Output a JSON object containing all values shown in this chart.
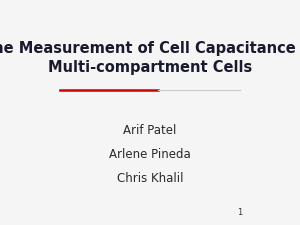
{
  "title_line1": "The Measurement of Cell Capacitance in",
  "title_line2": "Multi-compartment Cells",
  "authors": [
    "Arif Patel",
    "Arlene Pineda",
    "Chris Khalil"
  ],
  "slide_number": "1",
  "background_color": "#f5f5f5",
  "title_color": "#1a1a2e",
  "author_color": "#2a2a2a",
  "slide_num_color": "#333333",
  "divider_left_color": "#cc0000",
  "divider_right_color": "#cccccc",
  "title_fontsize": 10.5,
  "author_fontsize": 8.5,
  "slide_num_fontsize": 6
}
